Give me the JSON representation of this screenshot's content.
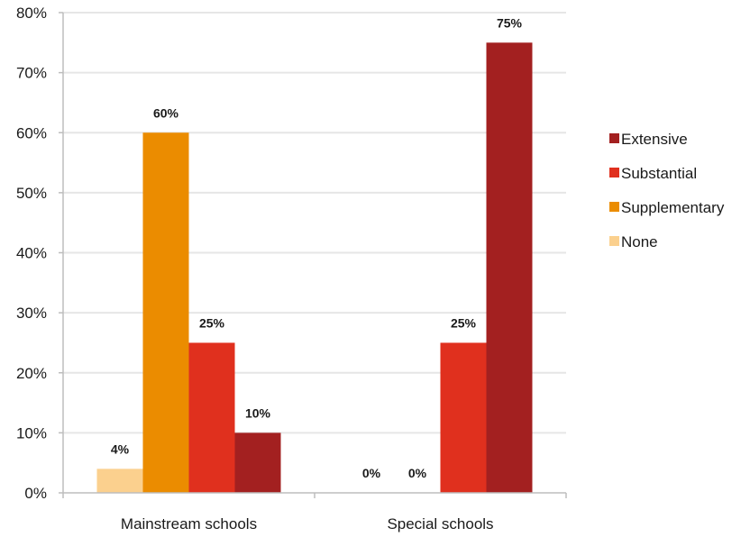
{
  "chart_data": {
    "type": "bar",
    "categories": [
      "Mainstream schools",
      "Special schools"
    ],
    "series": [
      {
        "name": "None",
        "values": [
          4,
          0
        ],
        "labels": [
          "4%",
          "0%"
        ],
        "color": "#fbd08e"
      },
      {
        "name": "Supplementary",
        "values": [
          60,
          0
        ],
        "labels": [
          "60%",
          "0%"
        ],
        "color": "#eb8c00"
      },
      {
        "name": "Substantial",
        "values": [
          25,
          25
        ],
        "labels": [
          "25%",
          "25%"
        ],
        "color": "#e0301e"
      },
      {
        "name": "Extensive",
        "values": [
          10,
          75
        ],
        "labels": [
          "10%",
          "75%"
        ],
        "color": "#a32020"
      }
    ],
    "legend_order": [
      "Extensive",
      "Substantial",
      "Supplementary",
      "None"
    ],
    "legend_position": "right",
    "ylim": [
      0,
      80
    ],
    "yticks": [
      0,
      10,
      20,
      30,
      40,
      50,
      60,
      70,
      80
    ],
    "ytick_labels": [
      "0%",
      "10%",
      "20%",
      "30%",
      "40%",
      "50%",
      "60%",
      "70%",
      "80%"
    ],
    "grid": true,
    "title": "",
    "xlabel": "",
    "ylabel": ""
  }
}
